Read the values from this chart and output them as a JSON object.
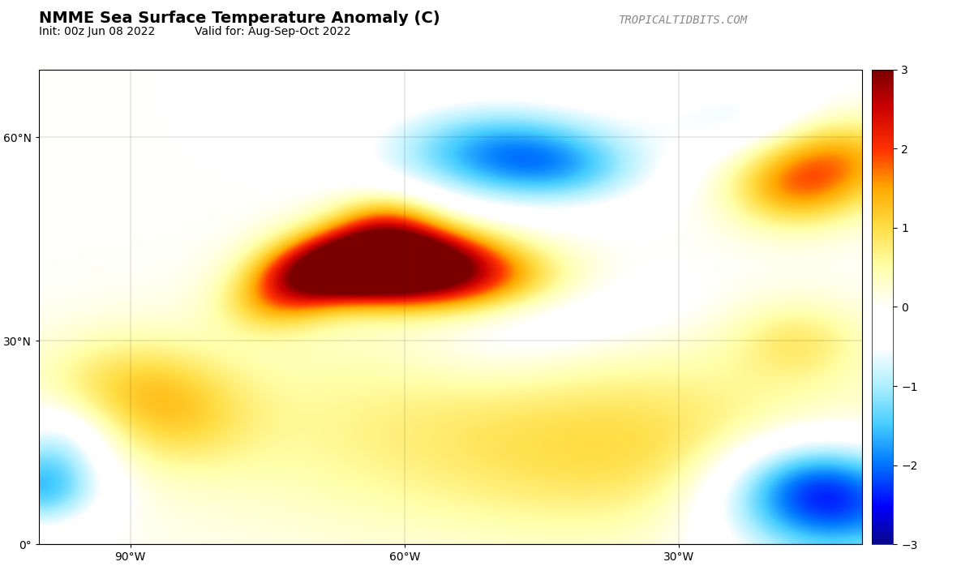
{
  "title": "NMME Sea Surface Temperature Anomaly (C)",
  "subtitle_left": "Init: 00z Jun 08 2022",
  "subtitle_right": "Valid for: Aug-Sep-Oct 2022",
  "watermark": "TROPICALTIDBITS.COM",
  "lon_min": -100,
  "lon_max": -10,
  "lat_min": 0,
  "lat_max": 70,
  "cbar_min": -3,
  "cbar_max": 3,
  "cbar_ticks": [
    -3,
    -2,
    -1,
    0,
    1,
    2,
    3
  ],
  "colormap_colors": [
    [
      0.0,
      "#08088a"
    ],
    [
      0.08,
      "#0000ff"
    ],
    [
      0.17,
      "#0077ff"
    ],
    [
      0.25,
      "#44ccff"
    ],
    [
      0.33,
      "#aaeeff"
    ],
    [
      0.415,
      "#ffffff"
    ],
    [
      0.5,
      "#ffffff"
    ],
    [
      0.585,
      "#ffffaa"
    ],
    [
      0.67,
      "#ffdd44"
    ],
    [
      0.75,
      "#ffaa00"
    ],
    [
      0.83,
      "#ff3300"
    ],
    [
      0.92,
      "#cc0000"
    ],
    [
      1.0,
      "#7a0000"
    ]
  ],
  "background_color": "#ffffff",
  "land_color": "#aaaaaa",
  "ocean_bg_color": "#ffffff",
  "title_fontsize": 14,
  "subtitle_fontsize": 10,
  "watermark_fontsize": 10,
  "tick_lons": [
    -90,
    -60,
    -30
  ],
  "tick_lats": [
    0,
    30,
    60
  ]
}
